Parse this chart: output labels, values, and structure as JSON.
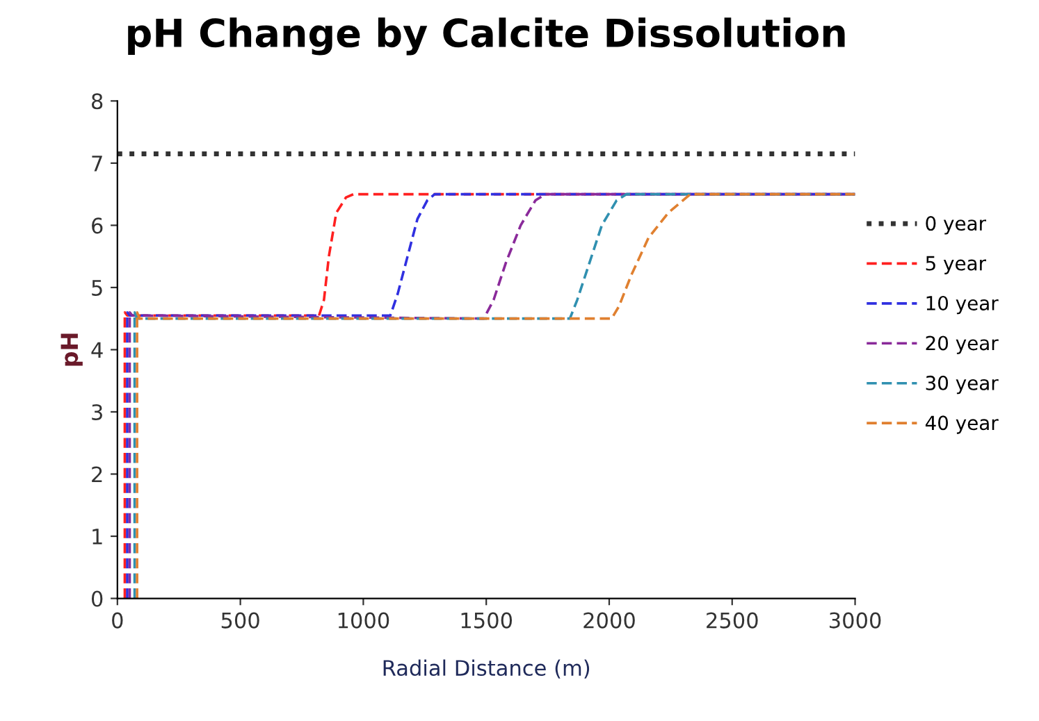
{
  "chart_data": {
    "type": "line",
    "title": "pH Change by Calcite Dissolution",
    "xlabel": "Radial Distance (m)",
    "ylabel": "pH",
    "xlim": [
      0,
      3000
    ],
    "xticks": [
      0,
      500,
      1000,
      1500,
      2000,
      2500,
      3000
    ],
    "ylim": [
      0,
      8
    ],
    "yticks": [
      0,
      1,
      2,
      3,
      4,
      5,
      6,
      7,
      8
    ],
    "grid": false,
    "legend": "right",
    "marker": "none",
    "series": [
      {
        "name": "0 year",
        "color": "#333333",
        "line_style": "dotted",
        "x": [
          0,
          3000
        ],
        "values": [
          7.15,
          7.15
        ]
      },
      {
        "name": "5 year",
        "color": "#ff2020",
        "line_style": "dashed",
        "x": [
          30,
          30,
          40,
          820,
          840,
          860,
          890,
          930,
          960,
          3000
        ],
        "values": [
          0,
          4.6,
          4.55,
          4.55,
          4.8,
          5.5,
          6.2,
          6.45,
          6.5,
          6.5
        ]
      },
      {
        "name": "10 year",
        "color": "#3030e0",
        "line_style": "dashed",
        "x": [
          40,
          40,
          50,
          1110,
          1140,
          1180,
          1220,
          1260,
          1290,
          3000
        ],
        "values": [
          0,
          4.6,
          4.55,
          4.55,
          4.9,
          5.5,
          6.1,
          6.4,
          6.5,
          6.5
        ]
      },
      {
        "name": "20 year",
        "color": "#8a2a9a",
        "line_style": "dashed",
        "x": [
          50,
          50,
          60,
          1490,
          1530,
          1580,
          1640,
          1700,
          1740,
          3000
        ],
        "values": [
          0,
          4.6,
          4.55,
          4.5,
          4.8,
          5.4,
          6.0,
          6.4,
          6.5,
          6.5
        ]
      },
      {
        "name": "30 year",
        "color": "#3090b0",
        "line_style": "dashed",
        "x": [
          70,
          70,
          80,
          1840,
          1870,
          1920,
          1970,
          2030,
          2070,
          3000
        ],
        "values": [
          0,
          4.6,
          4.5,
          4.5,
          4.8,
          5.4,
          6.0,
          6.4,
          6.5,
          6.5
        ]
      },
      {
        "name": "40 year",
        "color": "#e08030",
        "line_style": "dashed",
        "x": [
          80,
          80,
          90,
          2010,
          2040,
          2090,
          2160,
          2240,
          2330,
          3000
        ],
        "values": [
          0,
          4.6,
          4.5,
          4.5,
          4.7,
          5.2,
          5.8,
          6.2,
          6.5,
          6.5
        ]
      }
    ]
  }
}
